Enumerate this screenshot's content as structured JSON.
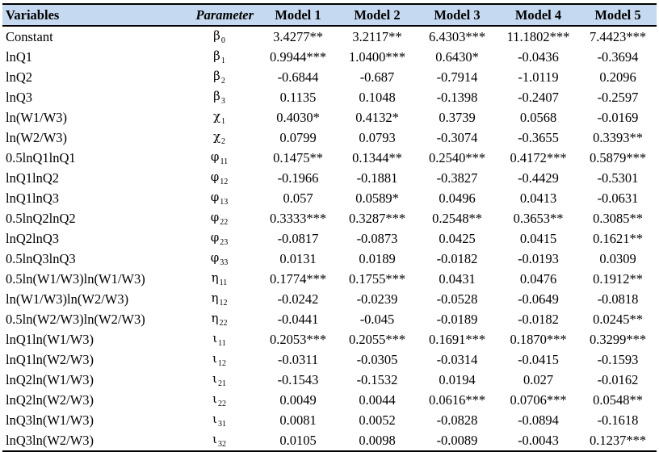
{
  "table": {
    "headers": [
      "Variables",
      "Parameter",
      "Model 1",
      "Model 2",
      "Model 3",
      "Model 4",
      "Model 5"
    ],
    "rows": [
      {
        "variable": "Constant",
        "param": {
          "sym": "β",
          "sub": "0"
        },
        "values": [
          "3.4277**",
          "3.2117**",
          "6.4303***",
          "11.1802***",
          "7.4423***"
        ]
      },
      {
        "variable": "lnQ1",
        "param": {
          "sym": "β",
          "sub": "1"
        },
        "values": [
          "0.9944***",
          "1.0400***",
          "0.6430*",
          "-0.0436",
          "-0.3694"
        ]
      },
      {
        "variable": "lnQ2",
        "param": {
          "sym": "β",
          "sub": "2"
        },
        "values": [
          "-0.6844",
          "-0.687",
          "-0.7914",
          "-1.0119",
          "0.2096"
        ]
      },
      {
        "variable": "lnQ3",
        "param": {
          "sym": "β",
          "sub": "3"
        },
        "values": [
          "0.1135",
          "0.1048",
          "-0.1398",
          "-0.2407",
          "-0.2597"
        ]
      },
      {
        "variable": "ln(W1/W3)",
        "param": {
          "sym": "χ",
          "sub": "1"
        },
        "values": [
          "0.4030*",
          "0.4132*",
          "0.3739",
          "0.0568",
          "-0.0169"
        ]
      },
      {
        "variable": "ln(W2/W3)",
        "param": {
          "sym": "χ",
          "sub": "2"
        },
        "values": [
          "0.0799",
          "0.0793",
          "-0.3074",
          "-0.3655",
          "0.3393**"
        ]
      },
      {
        "variable": "0.5lnQ1lnQ1",
        "param": {
          "sym": "φ",
          "sub": "11"
        },
        "values": [
          "0.1475**",
          "0.1344**",
          "0.2540***",
          "0.4172***",
          "0.5879***"
        ]
      },
      {
        "variable": "lnQ1lnQ2",
        "param": {
          "sym": "φ",
          "sub": "12"
        },
        "values": [
          "-0.1966",
          "-0.1881",
          "-0.3827",
          "-0.4429",
          "-0.5301"
        ]
      },
      {
        "variable": "lnQ1lnQ3",
        "param": {
          "sym": "φ",
          "sub": "13"
        },
        "values": [
          "0.057",
          "0.0589*",
          "0.0496",
          "0.0413",
          "-0.0631"
        ]
      },
      {
        "variable": "0.5lnQ2lnQ2",
        "param": {
          "sym": "φ",
          "sub": "22"
        },
        "values": [
          "0.3333***",
          "0.3287***",
          "0.2548**",
          "0.3653**",
          "0.3085**"
        ]
      },
      {
        "variable": "lnQ2lnQ3",
        "param": {
          "sym": "φ",
          "sub": "23"
        },
        "values": [
          "-0.0817",
          "-0.0873",
          "0.0425",
          "0.0415",
          "0.1621**"
        ]
      },
      {
        "variable": "0.5lnQ3lnQ3",
        "param": {
          "sym": "φ",
          "sub": "33"
        },
        "values": [
          "0.0131",
          "0.0189",
          "-0.0182",
          "-0.0193",
          "0.0309"
        ]
      },
      {
        "variable": "0.5ln(W1/W3)ln(W1/W3)",
        "param": {
          "sym": "η",
          "sub": "11"
        },
        "values": [
          "0.1774***",
          "0.1755***",
          "0.0431",
          "0.0476",
          "0.1912**"
        ]
      },
      {
        "variable": "ln(W1/W3)ln(W2/W3)",
        "param": {
          "sym": "η",
          "sub": "12"
        },
        "values": [
          "-0.0242",
          "-0.0239",
          "-0.0528",
          "-0.0649",
          "-0.0818"
        ]
      },
      {
        "variable": "0.5ln(W2/W3)ln(W2/W3)",
        "param": {
          "sym": "η",
          "sub": "22"
        },
        "values": [
          "-0.0441",
          "-0.045",
          "-0.0189",
          "-0.0182",
          "0.0245**"
        ]
      },
      {
        "variable": "lnQ1ln(W1/W3)",
        "param": {
          "sym": "ι",
          "sub": "11"
        },
        "values": [
          "0.2053***",
          "0.2055***",
          "0.1691***",
          "0.1870***",
          "0.3299***"
        ]
      },
      {
        "variable": "lnQ1ln(W2/W3)",
        "param": {
          "sym": "ι",
          "sub": "12"
        },
        "values": [
          "-0.0311",
          "-0.0305",
          "-0.0314",
          "-0.0415",
          "-0.1593"
        ]
      },
      {
        "variable": "lnQ2ln(W1/W3)",
        "param": {
          "sym": "ι",
          "sub": "21"
        },
        "values": [
          "-0.1543",
          "-0.1532",
          "0.0194",
          "0.027",
          "-0.0162"
        ]
      },
      {
        "variable": "lnQ2ln(W2/W3)",
        "param": {
          "sym": "ι",
          "sub": "22"
        },
        "values": [
          "0.0049",
          "0.0044",
          "0.0616***",
          "0.0706***",
          "0.0548**"
        ]
      },
      {
        "variable": "lnQ3ln(W1/W3)",
        "param": {
          "sym": "ι",
          "sub": "31"
        },
        "values": [
          "0.0081",
          "0.0052",
          "-0.0828",
          "-0.0894",
          "-0.1618"
        ]
      },
      {
        "variable": "lnQ3ln(W2/W3)",
        "param": {
          "sym": "ι",
          "sub": "32"
        },
        "values": [
          "0.0105",
          "0.0098",
          "-0.0089",
          "-0.0043",
          "0.1237***"
        ]
      }
    ]
  },
  "colors": {
    "header_bg": "#c5d9f0",
    "text": "#000000",
    "rule": "#000000"
  }
}
